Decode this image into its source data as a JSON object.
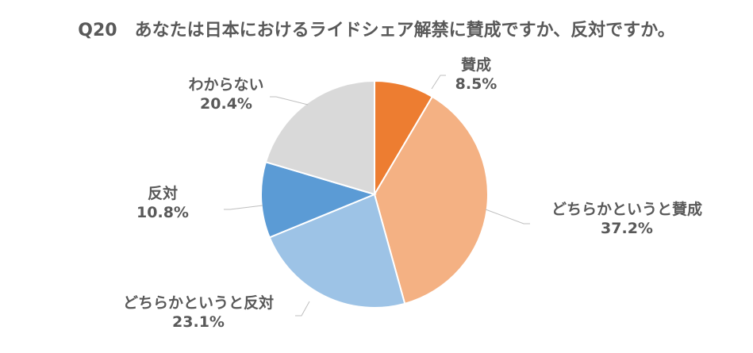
{
  "chart_data": {
    "type": "pie",
    "title": "Q20　あなたは日本におけるライドシェア解禁に賛成ですか、反対ですか。",
    "categories": [
      "賛成",
      "どちらかというと賛成",
      "どちらかというと反対",
      "反対",
      "わからない"
    ],
    "values": [
      8.5,
      37.2,
      23.1,
      10.8,
      20.4
    ],
    "value_labels": [
      "8.5%",
      "37.2%",
      "23.1%",
      "10.8%",
      "20.4%"
    ],
    "colors": [
      "#ed7d31",
      "#f4b183",
      "#9dc3e6",
      "#5b9bd5",
      "#d9d9d9"
    ],
    "start_angle": "12 o'clock, clockwise"
  }
}
